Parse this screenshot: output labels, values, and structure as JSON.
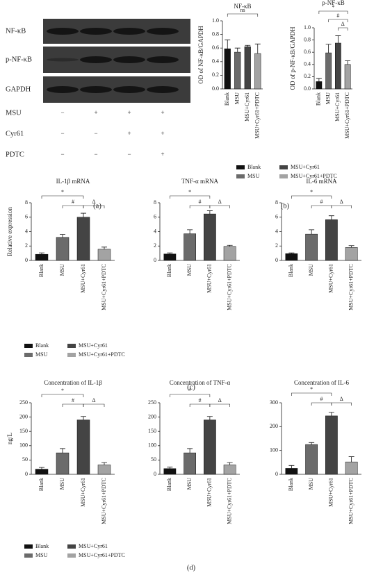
{
  "blot": {
    "rows": [
      "NF-κB",
      "p-NF-κB",
      "GAPDH"
    ],
    "conditions": [
      {
        "label": "MSU",
        "signs": [
          "−",
          "+",
          "+",
          "+"
        ]
      },
      {
        "label": "Cyr61",
        "signs": [
          "−",
          "−",
          "+",
          "+"
        ]
      },
      {
        "label": "PDTC",
        "signs": [
          "−",
          "−",
          "−",
          "+"
        ]
      }
    ]
  },
  "panel_labels": [
    "(a)",
    "(b)",
    "(c)",
    "(d)"
  ],
  "legends": [
    {
      "entries": [
        {
          "name": "Blank",
          "color": "#111111"
        },
        {
          "name": "MSU",
          "color": "#6b6b6b"
        },
        {
          "name": "MSU+Cyr61",
          "color": "#444444"
        },
        {
          "name": "MSU+Cyr61+PDTC",
          "color": "#a3a3a3"
        }
      ]
    },
    {
      "entries": [
        {
          "name": "Blank",
          "color": "#111111"
        },
        {
          "name": "MSU",
          "color": "#6b6b6b"
        },
        {
          "name": "MSU+Cyr61",
          "color": "#444444"
        },
        {
          "name": "MSU+Cyr61+PDTC",
          "color": "#a3a3a3"
        }
      ]
    },
    {
      "entries": [
        {
          "name": "Blank",
          "color": "#111111"
        },
        {
          "name": "MSU",
          "color": "#6b6b6b"
        },
        {
          "name": "MSU+Cyr61",
          "color": "#444444"
        },
        {
          "name": "MSU+Cyr61+PDTC",
          "color": "#a3a3a3"
        }
      ]
    }
  ],
  "chart_data": [
    {
      "type": "bar",
      "title": "NF-κB",
      "y_label": "OD of NF-κB/GAPDH",
      "categories": [
        "Blank",
        "MSU",
        "MSU+Cyr61",
        "MSU+Cyr61+PDTC"
      ],
      "values": [
        0.59,
        0.54,
        0.62,
        0.52
      ],
      "errors": [
        0.13,
        0.06,
        0.02,
        0.14
      ],
      "colors": [
        "#111111",
        "#6b6b6b",
        "#444444",
        "#a3a3a3"
      ],
      "ylim": [
        0,
        1
      ],
      "yticks": [
        {
          "value": 0,
          "label": "0.0"
        },
        0.2,
        0.4,
        0.6,
        0.8,
        {
          "value": 1,
          "label": "1.0"
        }
      ],
      "brackets": [
        {
          "label": "ns",
          "from": 0,
          "to": 3
        }
      ]
    },
    {
      "type": "bar",
      "title": "p-NF-κB",
      "y_label": "OD of p-NF-κB/GAPDH",
      "categories": [
        "Blank",
        "MSU",
        "MSU+Cyr61",
        "MSU+Cyr61+PDTC"
      ],
      "values": [
        0.12,
        0.59,
        0.75,
        0.4
      ],
      "errors": [
        0.05,
        0.14,
        0.12,
        0.06
      ],
      "colors": [
        "#111111",
        "#6b6b6b",
        "#444444",
        "#a3a3a3"
      ],
      "ylim": [
        0,
        1
      ],
      "yticks": [
        {
          "value": 0,
          "label": "0.0"
        },
        0.2,
        0.4,
        0.6,
        0.8,
        {
          "value": 1,
          "label": "1.0"
        }
      ],
      "brackets": [
        {
          "label": "*",
          "from": 0,
          "to": 3
        },
        {
          "label": "#",
          "from": 1,
          "to": 3
        },
        {
          "label": "Δ",
          "from": 2,
          "to": 3
        }
      ]
    },
    {
      "type": "bar",
      "title": "IL-1β mRNA",
      "y_label": "Relative expression",
      "categories": [
        "Blank",
        "MSU",
        "MSU+Cyr61",
        "MSU+Cyr61+PDTC"
      ],
      "values": [
        0.85,
        3.2,
        6.0,
        1.55
      ],
      "errors": [
        0.2,
        0.4,
        0.55,
        0.3
      ],
      "colors": [
        "#111111",
        "#6b6b6b",
        "#444444",
        "#a3a3a3"
      ],
      "ylim": [
        0,
        8
      ],
      "yticks": [
        0,
        2,
        4,
        6,
        8
      ],
      "brackets": [
        {
          "label": "*",
          "from": 0,
          "to": 2
        },
        {
          "label": "#",
          "from": 1,
          "to": 2
        },
        {
          "label": "Δ",
          "from": 2,
          "to": 3
        }
      ]
    },
    {
      "type": "bar",
      "title": "TNF-α mRNA",
      "categories": [
        "Blank",
        "MSU",
        "MSU+Cyr61",
        "MSU+Cyr61+PDTC"
      ],
      "values": [
        0.9,
        3.7,
        6.45,
        1.95
      ],
      "errors": [
        0.15,
        0.55,
        0.45,
        0.15
      ],
      "colors": [
        "#111111",
        "#6b6b6b",
        "#444444",
        "#a3a3a3"
      ],
      "ylim": [
        0,
        8
      ],
      "yticks": [
        0,
        2,
        4,
        6,
        8
      ],
      "brackets": [
        {
          "label": "*",
          "from": 0,
          "to": 2
        },
        {
          "label": "#",
          "from": 1,
          "to": 2
        },
        {
          "label": "Δ",
          "from": 2,
          "to": 3
        }
      ]
    },
    {
      "type": "bar",
      "title": "IL-6 mRNA",
      "categories": [
        "Blank",
        "MSU",
        "MSU+Cyr61",
        "MSU+Cyr61+PDTC"
      ],
      "values": [
        0.95,
        3.65,
        5.65,
        1.8
      ],
      "errors": [
        0.1,
        0.6,
        0.55,
        0.25
      ],
      "colors": [
        "#111111",
        "#6b6b6b",
        "#444444",
        "#a3a3a3"
      ],
      "ylim": [
        0,
        8
      ],
      "yticks": [
        0,
        2,
        4,
        6,
        8
      ],
      "brackets": [
        {
          "label": "*",
          "from": 0,
          "to": 2
        },
        {
          "label": "#",
          "from": 1,
          "to": 2
        },
        {
          "label": "Δ",
          "from": 2,
          "to": 3
        }
      ]
    },
    {
      "type": "bar",
      "title": "Concentration of IL-1β",
      "y_label": "ng/L",
      "categories": [
        "Blank",
        "MSU",
        "MSU+Cyr61",
        "MSU+Cyr61+PDTC"
      ],
      "values": [
        18,
        75,
        190,
        33
      ],
      "errors": [
        6,
        15,
        12,
        8
      ],
      "colors": [
        "#111111",
        "#6b6b6b",
        "#444444",
        "#a3a3a3"
      ],
      "ylim": [
        0,
        250
      ],
      "yticks": [
        0,
        50,
        100,
        150,
        200,
        250
      ],
      "brackets": [
        {
          "label": "*",
          "from": 0,
          "to": 2
        },
        {
          "label": "#",
          "from": 1,
          "to": 2
        },
        {
          "label": "Δ",
          "from": 2,
          "to": 3
        }
      ]
    },
    {
      "type": "bar",
      "title": "Concentration of TNF-α",
      "categories": [
        "Blank",
        "MSU",
        "MSU+Cyr61",
        "MSU+Cyr61+PDTC"
      ],
      "values": [
        20,
        75,
        190,
        33
      ],
      "errors": [
        5,
        15,
        12,
        8
      ],
      "colors": [
        "#111111",
        "#6b6b6b",
        "#444444",
        "#a3a3a3"
      ],
      "ylim": [
        0,
        250
      ],
      "yticks": [
        0,
        50,
        100,
        150,
        200,
        250
      ],
      "brackets": [
        {
          "label": "*",
          "from": 0,
          "to": 2
        },
        {
          "label": "#",
          "from": 1,
          "to": 2
        },
        {
          "label": "Δ",
          "from": 2,
          "to": 3
        }
      ]
    },
    {
      "type": "bar",
      "title": "Concentration of IL-6",
      "categories": [
        "Blank",
        "MSU",
        "MSU+Cyr61",
        "MSU+Cyr61+PDTC"
      ],
      "values": [
        25,
        125,
        245,
        52
      ],
      "errors": [
        12,
        8,
        15,
        22
      ],
      "colors": [
        "#111111",
        "#6b6b6b",
        "#444444",
        "#a3a3a3"
      ],
      "ylim": [
        0,
        300
      ],
      "yticks": [
        0,
        100,
        200,
        300
      ],
      "brackets": [
        {
          "label": "*",
          "from": 0,
          "to": 2
        },
        {
          "label": "#",
          "from": 1,
          "to": 2
        },
        {
          "label": "Δ",
          "from": 2,
          "to": 3
        }
      ]
    }
  ]
}
